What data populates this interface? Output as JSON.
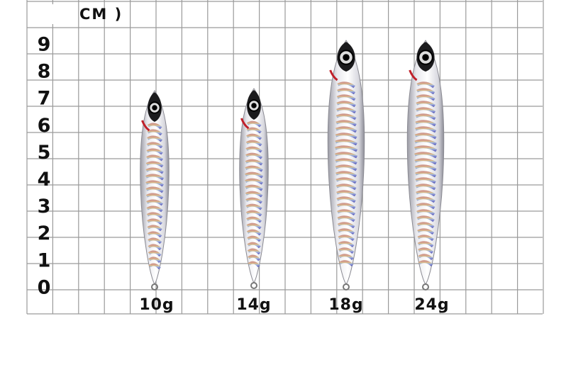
{
  "header": {
    "unit": "CM )"
  },
  "scale": [
    "9",
    "8",
    "7",
    "6",
    "5",
    "4",
    "3",
    "2",
    "1",
    "0"
  ],
  "lures": [
    {
      "label": "10g"
    },
    {
      "label": "14g"
    },
    {
      "label": "18g"
    },
    {
      "label": "24g"
    }
  ]
}
